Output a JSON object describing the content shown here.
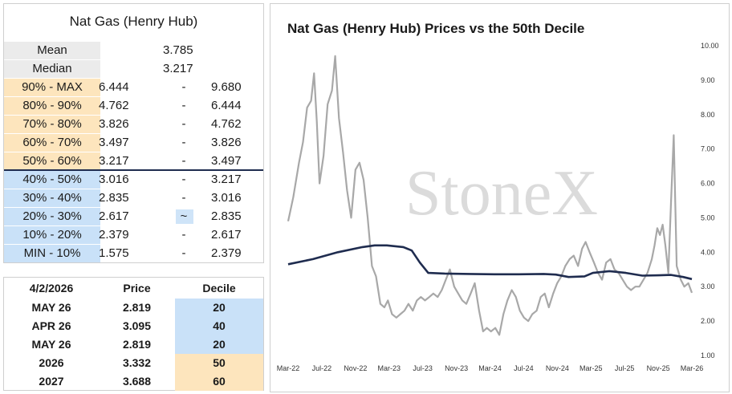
{
  "decile_table": {
    "title": "Nat Gas (Henry Hub)",
    "mean": {
      "label": "Mean",
      "value": "3.785"
    },
    "median": {
      "label": "Median",
      "value": "3.217"
    },
    "rows": [
      {
        "label": "90% - MAX",
        "low": "6.444",
        "sep": "-",
        "high": "9.680",
        "band": "orange"
      },
      {
        "label": "80% - 90%",
        "low": "4.762",
        "sep": "-",
        "high": "6.444",
        "band": "orange"
      },
      {
        "label": "70% - 80%",
        "low": "3.826",
        "sep": "-",
        "high": "4.762",
        "band": "orange"
      },
      {
        "label": "60% - 70%",
        "low": "3.497",
        "sep": "-",
        "high": "3.826",
        "band": "orange"
      },
      {
        "label": "50% - 60%",
        "low": "3.217",
        "sep": "-",
        "high": "3.497",
        "band": "orange"
      },
      {
        "label": "40% - 50%",
        "low": "3.016",
        "sep": "-",
        "high": "3.217",
        "band": "blue"
      },
      {
        "label": "30% - 40%",
        "low": "2.835",
        "sep": "-",
        "high": "3.016",
        "band": "blue"
      },
      {
        "label": "20% - 30%",
        "low": "2.617",
        "sep": "~",
        "high": "2.835",
        "band": "blue"
      },
      {
        "label": "10% - 20%",
        "low": "2.379",
        "sep": "-",
        "high": "2.617",
        "band": "blue"
      },
      {
        "label": "MIN - 10%",
        "low": "1.575",
        "sep": "-",
        "high": "2.379",
        "band": "blue"
      }
    ]
  },
  "price_table": {
    "headers": [
      "4/2/2026",
      "Price",
      "Decile"
    ],
    "rows": [
      {
        "contract": "MAY 26",
        "price": "2.819",
        "decile": "20",
        "band": "blue"
      },
      {
        "contract": "APR 26",
        "price": "3.095",
        "decile": "40",
        "band": "blue"
      },
      {
        "contract": "MAY 26",
        "price": "2.819",
        "decile": "20",
        "band": "blue"
      },
      {
        "contract": "2026",
        "price": "3.332",
        "decile": "50",
        "band": "orange"
      },
      {
        "contract": "2027",
        "price": "3.688",
        "decile": "60",
        "band": "orange"
      }
    ]
  },
  "colors": {
    "price_line": "#a8a8a8",
    "decile_line": "#1f2c4f",
    "orange_band": "#fde5bd",
    "blue_band": "#c9e1f8"
  },
  "chart_data": {
    "type": "line",
    "title": "Nat Gas (Henry Hub) Prices vs the 50th Decile",
    "watermark": "StoneX",
    "ylim": [
      1.0,
      10.0
    ],
    "yticks": [
      "1.00",
      "2.00",
      "3.00",
      "4.00",
      "5.00",
      "6.00",
      "7.00",
      "8.00",
      "9.00",
      "10.00"
    ],
    "xticks": [
      "Mar-22",
      "Jul-22",
      "Nov-22",
      "Mar-23",
      "Jul-23",
      "Nov-23",
      "Mar-24",
      "Jul-24",
      "Nov-24",
      "Mar-25",
      "Jul-25",
      "Nov-25",
      "Mar-26"
    ],
    "grid": false,
    "series": [
      {
        "color": "#a8a8a8",
        "x": [
          "2022-03-01",
          "2022-03-20",
          "2022-04-10",
          "2022-04-25",
          "2022-05-10",
          "2022-05-25",
          "2022-06-05",
          "2022-06-15",
          "2022-06-25",
          "2022-07-10",
          "2022-07-25",
          "2022-08-10",
          "2022-08-22",
          "2022-09-05",
          "2022-09-20",
          "2022-10-05",
          "2022-10-20",
          "2022-11-05",
          "2022-11-20",
          "2022-12-05",
          "2022-12-20",
          "2023-01-05",
          "2023-01-20",
          "2023-02-05",
          "2023-02-20",
          "2023-03-05",
          "2023-03-20",
          "2023-04-05",
          "2023-04-20",
          "2023-05-05",
          "2023-05-20",
          "2023-06-05",
          "2023-06-20",
          "2023-07-05",
          "2023-07-20",
          "2023-08-05",
          "2023-08-20",
          "2023-09-05",
          "2023-09-20",
          "2023-10-05",
          "2023-10-20",
          "2023-11-05",
          "2023-11-20",
          "2023-12-05",
          "2023-12-20",
          "2024-01-05",
          "2024-01-20",
          "2024-02-05",
          "2024-02-20",
          "2024-03-05",
          "2024-03-20",
          "2024-04-05",
          "2024-04-20",
          "2024-05-05",
          "2024-05-20",
          "2024-06-05",
          "2024-06-20",
          "2024-07-05",
          "2024-07-20",
          "2024-08-05",
          "2024-08-20",
          "2024-09-05",
          "2024-09-20",
          "2024-10-05",
          "2024-10-20",
          "2024-11-05",
          "2024-11-20",
          "2024-12-05",
          "2024-12-20",
          "2025-01-05",
          "2025-01-20",
          "2025-02-05",
          "2025-02-20",
          "2025-03-05",
          "2025-03-20",
          "2025-04-05",
          "2025-04-20",
          "2025-05-05",
          "2025-05-20",
          "2025-06-05",
          "2025-06-20",
          "2025-07-05",
          "2025-07-20",
          "2025-08-05",
          "2025-08-20",
          "2025-09-05",
          "2025-09-20",
          "2025-10-05",
          "2025-10-20",
          "2025-11-05",
          "2025-11-15",
          "2025-11-25",
          "2025-12-05",
          "2025-12-15",
          "2025-12-25",
          "2026-01-05",
          "2026-01-15",
          "2026-01-25",
          "2026-02-05",
          "2026-02-20",
          "2026-03-05",
          "2026-03-20",
          "2026-04-02"
        ],
        "y": [
          4.9,
          5.6,
          6.6,
          7.2,
          8.2,
          8.4,
          9.2,
          7.8,
          6.0,
          6.8,
          8.3,
          8.7,
          9.7,
          7.9,
          6.9,
          5.8,
          5.0,
          6.4,
          6.6,
          6.1,
          5.0,
          3.6,
          3.3,
          2.5,
          2.4,
          2.6,
          2.2,
          2.1,
          2.2,
          2.3,
          2.5,
          2.3,
          2.6,
          2.7,
          2.6,
          2.7,
          2.8,
          2.7,
          2.9,
          3.2,
          3.5,
          3.0,
          2.8,
          2.6,
          2.5,
          2.8,
          3.1,
          2.3,
          1.7,
          1.8,
          1.7,
          1.8,
          1.6,
          2.2,
          2.6,
          2.9,
          2.7,
          2.3,
          2.1,
          2.0,
          2.2,
          2.3,
          2.7,
          2.8,
          2.4,
          2.8,
          3.1,
          3.3,
          3.6,
          3.8,
          3.9,
          3.6,
          4.1,
          4.3,
          4.0,
          3.7,
          3.4,
          3.2,
          3.7,
          3.8,
          3.5,
          3.4,
          3.2,
          3.0,
          2.9,
          3.0,
          3.0,
          3.2,
          3.4,
          3.8,
          4.2,
          4.7,
          4.5,
          4.8,
          4.2,
          3.4,
          5.5,
          7.4,
          3.6,
          3.2,
          3.0,
          3.1,
          2.82
        ]
      },
      {
        "color": "#1f2c4f",
        "x": [
          "2022-03-01",
          "2022-06-01",
          "2022-09-01",
          "2022-12-01",
          "2023-01-15",
          "2023-03-01",
          "2023-05-01",
          "2023-06-01",
          "2023-07-01",
          "2023-08-01",
          "2023-10-01",
          "2024-01-01",
          "2024-04-01",
          "2024-07-01",
          "2024-10-01",
          "2024-11-15",
          "2025-01-01",
          "2025-03-01",
          "2025-04-01",
          "2025-06-01",
          "2025-08-01",
          "2025-10-01",
          "2025-12-01",
          "2026-01-15",
          "2026-03-01",
          "2026-04-02"
        ],
        "y": [
          3.65,
          3.8,
          4.0,
          4.15,
          4.2,
          4.2,
          4.15,
          4.05,
          3.7,
          3.4,
          3.38,
          3.37,
          3.36,
          3.36,
          3.37,
          3.35,
          3.28,
          3.3,
          3.4,
          3.45,
          3.4,
          3.32,
          3.33,
          3.34,
          3.28,
          3.22
        ]
      }
    ]
  }
}
